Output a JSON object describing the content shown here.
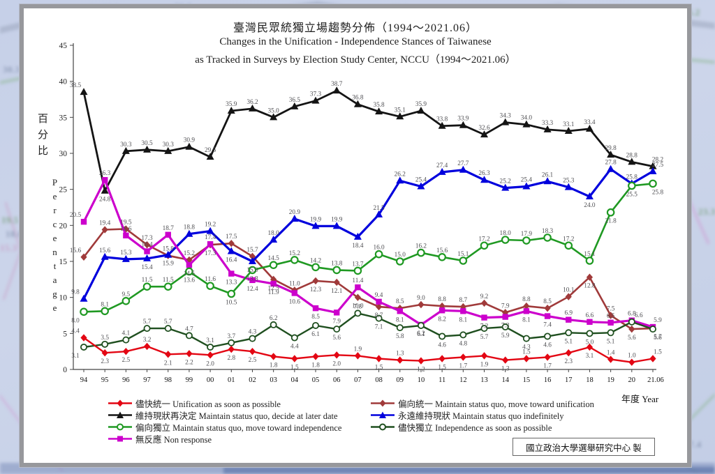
{
  "backdrop": {
    "numbers": [
      "35.9",
      "36.2",
      "30.6",
      "35.0",
      "28.6",
      "16.2",
      "30.3",
      "25.3",
      "19.5",
      "18.0",
      "15.3",
      "15.0",
      "23.3",
      "17.4",
      "9.8"
    ]
  },
  "footer": {
    "credit": "國立政治大學選舉研究中心 製"
  },
  "chart_data": {
    "type": "line",
    "title": "臺灣民眾統獨立場趨勢分佈（1994～2021.06）",
    "subtitle_en_1": "Changes in the Unification - Independence Stances of Taiwanese",
    "subtitle_en_2": "as Tracked in Surveys by Election Study Center, NCCU（1994～2021.06）",
    "xlabel": "年度 Year",
    "ylabel_zh": "百分比",
    "ylabel_en": "Percentage",
    "ylim": [
      0,
      45
    ],
    "y_ticks": [
      0,
      5,
      10,
      15,
      20,
      25,
      30,
      35,
      40,
      45
    ],
    "grid": false,
    "legend_position": "bottom",
    "categories": [
      "94",
      "95",
      "96",
      "97",
      "98",
      "99",
      "00",
      "01",
      "02",
      "03",
      "04",
      "05",
      "06",
      "07",
      "08",
      "09",
      "10",
      "11",
      "12",
      "13",
      "14",
      "15",
      "16",
      "17",
      "18",
      "19",
      "20",
      "21.06"
    ],
    "series": [
      {
        "id": "unification-asap",
        "label": "儘快統一 Unification as soon as possible",
        "color": "#e30613",
        "marker": "diamond",
        "values": [
          4.4,
          2.3,
          2.5,
          3.2,
          2.1,
          2.2,
          2.0,
          2.8,
          2.5,
          1.8,
          1.5,
          1.8,
          2.0,
          1.9,
          1.5,
          1.3,
          1.2,
          1.5,
          1.7,
          1.9,
          1.3,
          1.5,
          1.7,
          2.3,
          3.1,
          1.4,
          1.0,
          1.5
        ]
      },
      {
        "id": "lean-unification",
        "label": "偏向統一 Maintain status quo, move toward unification",
        "color": "#a03a3a",
        "marker": "diamond",
        "values": [
          15.6,
          19.4,
          19.5,
          17.3,
          15.8,
          15.2,
          17.3,
          17.5,
          15.7,
          12.5,
          11.0,
          12.3,
          12.1,
          10.0,
          8.7,
          8.5,
          9.0,
          8.8,
          8.7,
          9.2,
          7.9,
          8.8,
          8.5,
          10.1,
          12.8,
          7.5,
          5.6,
          5.7
        ]
      },
      {
        "id": "status-quo-decide-later",
        "label": "維持現狀再決定 Maintain status quo, decide at later date",
        "color": "#141414",
        "marker": "triangle",
        "values": [
          38.5,
          24.8,
          30.3,
          30.5,
          30.3,
          30.9,
          29.5,
          35.9,
          36.2,
          35.0,
          36.5,
          37.3,
          38.7,
          36.8,
          35.8,
          35.1,
          35.9,
          33.8,
          33.9,
          32.6,
          34.3,
          34.0,
          33.3,
          33.1,
          33.4,
          29.8,
          28.8,
          28.2
        ]
      },
      {
        "id": "status-quo-indefinitely",
        "label": "永遠維持現狀 Maintain status quo indefinitely",
        "color": "#0000dd",
        "marker": "triangle",
        "values": [
          9.8,
          15.6,
          15.3,
          15.4,
          15.9,
          18.8,
          19.2,
          16.4,
          15.0,
          18.0,
          20.9,
          19.9,
          19.9,
          18.4,
          21.5,
          26.2,
          25.4,
          27.4,
          27.7,
          26.3,
          25.2,
          25.4,
          26.1,
          25.3,
          24.0,
          27.8,
          25.8,
          27.5
        ]
      },
      {
        "id": "lean-independence",
        "label": "偏向獨立 Maintain status quo, move toward independence",
        "color": "#1f9922",
        "marker": "circle-open",
        "values": [
          8.0,
          8.1,
          9.5,
          11.5,
          11.5,
          13.6,
          11.6,
          10.5,
          13.8,
          14.5,
          15.2,
          14.2,
          13.8,
          13.7,
          16.0,
          15.0,
          16.2,
          15.6,
          15.1,
          17.2,
          18.0,
          17.9,
          18.3,
          17.2,
          15.1,
          21.8,
          25.5,
          25.8
        ]
      },
      {
        "id": "independence-asap",
        "label": "儘快獨立 Independence as soon as possible",
        "color": "#1f4f1f",
        "marker": "circle-open-small",
        "values": [
          3.1,
          3.5,
          4.1,
          5.7,
          5.7,
          4.7,
          3.1,
          3.7,
          4.3,
          6.2,
          4.4,
          6.1,
          5.6,
          7.8,
          7.1,
          5.8,
          6.1,
          4.6,
          4.8,
          5.7,
          5.9,
          4.3,
          4.6,
          5.1,
          5.0,
          5.1,
          6.6,
          5.6
        ]
      },
      {
        "id": "non-response",
        "label": "無反應 Non response",
        "color": "#cc00cc",
        "marker": "square",
        "values": [
          20.5,
          26.3,
          18.6,
          16.4,
          18.7,
          14.5,
          17.4,
          13.3,
          12.4,
          11.9,
          10.6,
          8.5,
          7.9,
          11.4,
          9.4,
          8.1,
          6.2,
          8.2,
          8.1,
          7.2,
          7.3,
          8.1,
          7.4,
          6.9,
          6.6,
          6.5,
          6.8,
          5.9
        ]
      }
    ],
    "legend_columns": [
      [
        0,
        2,
        4,
        6
      ],
      [
        1,
        3,
        5
      ]
    ]
  }
}
